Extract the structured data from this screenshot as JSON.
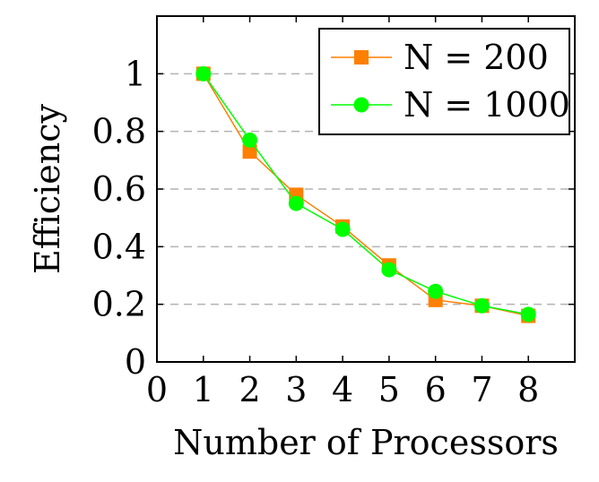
{
  "chart_data": {
    "type": "line",
    "xlabel": "Number of Processors",
    "ylabel": "Efficiency",
    "xlim": [
      0,
      9
    ],
    "ylim": [
      0,
      1.2
    ],
    "x_ticks": [
      "0",
      "1",
      "2",
      "3",
      "4",
      "5",
      "6",
      "7",
      "8"
    ],
    "y_ticks": [
      "0",
      "0.2",
      "0.4",
      "0.6",
      "0.8",
      "1"
    ],
    "grid": "horizontal dashed",
    "legend_position": "top-right",
    "x": [
      1,
      2,
      3,
      4,
      5,
      6,
      7,
      8
    ],
    "series": [
      {
        "name": "N = 200",
        "color": "#ff7f00",
        "marker": "square",
        "values": [
          1.0,
          0.73,
          0.58,
          0.47,
          0.335,
          0.215,
          0.195,
          0.16
        ]
      },
      {
        "name": "N = 1000",
        "color": "#00ff00",
        "marker": "circle",
        "values": [
          1.0,
          0.77,
          0.55,
          0.46,
          0.32,
          0.245,
          0.195,
          0.165
        ]
      }
    ]
  }
}
